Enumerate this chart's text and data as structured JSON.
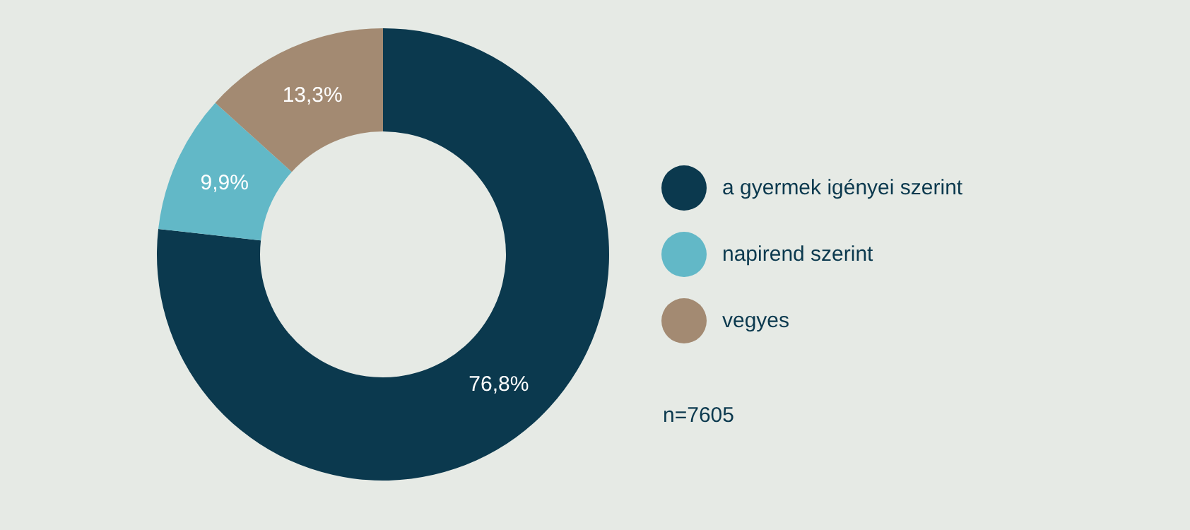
{
  "chart_data": {
    "type": "donut",
    "categories": [
      "a gyermek igényei szerint",
      "napirend szerint",
      "vegyes"
    ],
    "values": [
      76.8,
      9.9,
      13.3
    ],
    "colors": [
      "#0b394e",
      "#62b8c7",
      "#a38a72"
    ],
    "value_labels": [
      "76,8%",
      "9,9%",
      "13,3%"
    ],
    "legend": "right",
    "annotations": [
      "n=7605"
    ]
  }
}
